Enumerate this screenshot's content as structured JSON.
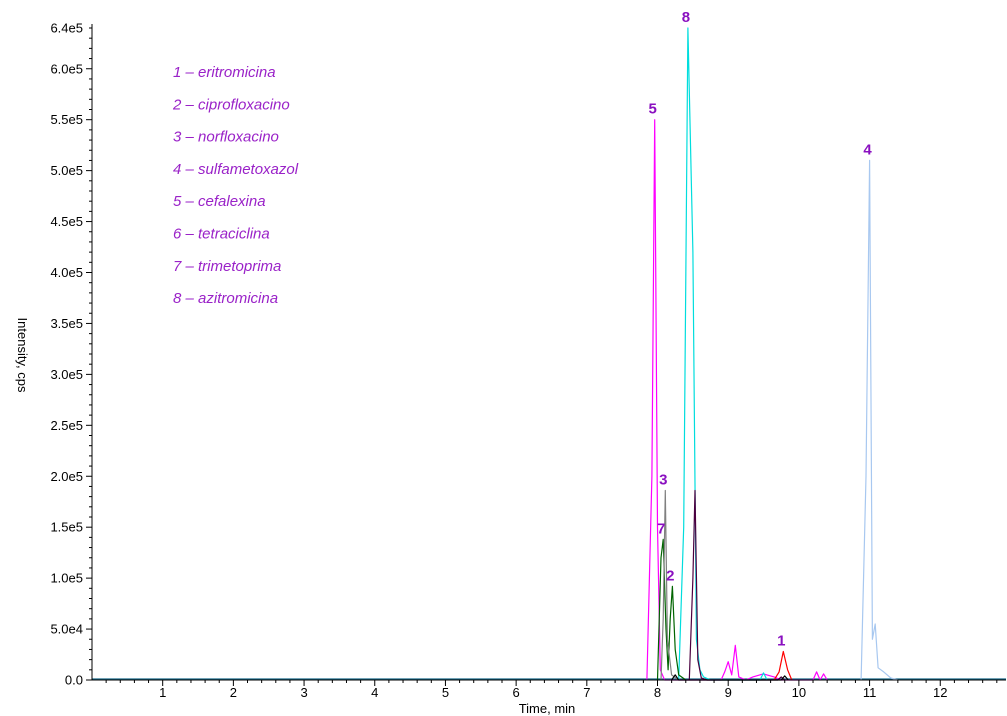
{
  "chart_data": {
    "type": "line",
    "title": "",
    "xlabel": "Time, min",
    "ylabel": "Intensity, cps",
    "xlim": [
      0,
      12.93
    ],
    "ylim": [
      0,
      640000
    ],
    "x_ticks": [
      "1",
      "2",
      "3",
      "4",
      "5",
      "6",
      "7",
      "8",
      "9",
      "10",
      "11",
      "12"
    ],
    "y_ticks": [
      "0.0",
      "5.0e4",
      "1.0e5",
      "1.5e5",
      "2.0e5",
      "2.5e5",
      "3.0e5",
      "3.5e5",
      "4.0e5",
      "4.5e5",
      "5.0e5",
      "5.5e5",
      "6.0e5",
      "6.4e5"
    ],
    "grid": false,
    "legend_position": "top-left",
    "legend": [
      "1 – eritromicina",
      "2 – ciprofloxacino",
      "3 – norfloxacino",
      "4 – sulfametoxazol",
      "5 – cefalexina",
      "6 – tetraciclina",
      "7 – trimetoprima",
      "8 – azitromicina"
    ],
    "legend_color": "#9a22c8",
    "peak_label_color": "#8a10c0",
    "series": [
      {
        "color": "#ff00ff",
        "points": [
          [
            7.85,
            0
          ],
          [
            7.92,
            200000
          ],
          [
            7.96,
            550000
          ],
          [
            8.0,
            150000
          ],
          [
            8.04,
            10000
          ],
          [
            8.1,
            0
          ],
          [
            8.9,
            0
          ],
          [
            8.95,
            8000
          ],
          [
            9.0,
            18000
          ],
          [
            9.05,
            5000
          ],
          [
            9.1,
            34000
          ],
          [
            9.15,
            3000
          ],
          [
            9.25,
            0
          ],
          [
            9.35,
            3000
          ],
          [
            9.5,
            6000
          ],
          [
            9.65,
            3000
          ],
          [
            9.75,
            0
          ],
          [
            10.2,
            0
          ],
          [
            10.25,
            8000
          ],
          [
            10.3,
            0
          ],
          [
            10.35,
            6000
          ],
          [
            10.4,
            0
          ]
        ]
      },
      {
        "color": "#00dddd",
        "points": [
          [
            8.3,
            0
          ],
          [
            8.37,
            150000
          ],
          [
            8.43,
            640000
          ],
          [
            8.5,
            420000
          ],
          [
            8.55,
            40000
          ],
          [
            8.6,
            10000
          ],
          [
            8.65,
            3000
          ],
          [
            8.75,
            0
          ],
          [
            9.45,
            0
          ],
          [
            9.5,
            7000
          ],
          [
            9.55,
            0
          ]
        ]
      },
      {
        "color": "#a8c8f0",
        "points": [
          [
            10.88,
            0
          ],
          [
            10.95,
            200000
          ],
          [
            11.0,
            510000
          ],
          [
            11.04,
            40000
          ],
          [
            11.08,
            55000
          ],
          [
            11.12,
            12000
          ],
          [
            11.2,
            8000
          ],
          [
            11.3,
            2000
          ],
          [
            11.4,
            0
          ]
        ]
      },
      {
        "color": "#006400",
        "points": [
          [
            8.0,
            0
          ],
          [
            8.05,
            120000
          ],
          [
            8.08,
            138000
          ],
          [
            8.12,
            50000
          ],
          [
            8.15,
            10000
          ],
          [
            8.18,
            60000
          ],
          [
            8.21,
            92000
          ],
          [
            8.25,
            30000
          ],
          [
            8.3,
            5000
          ],
          [
            8.4,
            0
          ]
        ]
      },
      {
        "color": "#808080",
        "points": [
          [
            8.05,
            0
          ],
          [
            8.08,
            60000
          ],
          [
            8.11,
            186000
          ],
          [
            8.14,
            40000
          ],
          [
            8.2,
            5000
          ],
          [
            8.3,
            0
          ]
        ]
      },
      {
        "color": "#4b0040",
        "points": [
          [
            8.45,
            0
          ],
          [
            8.5,
            100000
          ],
          [
            8.53,
            186000
          ],
          [
            8.57,
            20000
          ],
          [
            8.62,
            2000
          ],
          [
            8.7,
            0
          ],
          [
            9.7,
            0
          ],
          [
            9.75,
            3000
          ],
          [
            9.8,
            0
          ]
        ]
      },
      {
        "color": "#ff0000",
        "points": [
          [
            9.65,
            0
          ],
          [
            9.72,
            8000
          ],
          [
            9.78,
            28000
          ],
          [
            9.84,
            10000
          ],
          [
            9.9,
            0
          ]
        ]
      },
      {
        "color": "#000000",
        "points": [
          [
            8.2,
            0
          ],
          [
            8.25,
            5000
          ],
          [
            8.3,
            0
          ],
          [
            9.75,
            0
          ],
          [
            9.8,
            4000
          ],
          [
            9.85,
            0
          ]
        ]
      }
    ],
    "peak_labels": [
      {
        "label": "8",
        "x": 8.43,
        "y": 640000
      },
      {
        "label": "5",
        "x": 7.96,
        "y": 550000
      },
      {
        "label": "4",
        "x": 11.0,
        "y": 510000
      },
      {
        "label": "3",
        "x": 8.11,
        "y": 186000
      },
      {
        "label": "7",
        "x": 8.08,
        "y": 138000
      },
      {
        "label": "2",
        "x": 8.21,
        "y": 92000
      },
      {
        "label": "1",
        "x": 9.78,
        "y": 28000
      }
    ]
  }
}
